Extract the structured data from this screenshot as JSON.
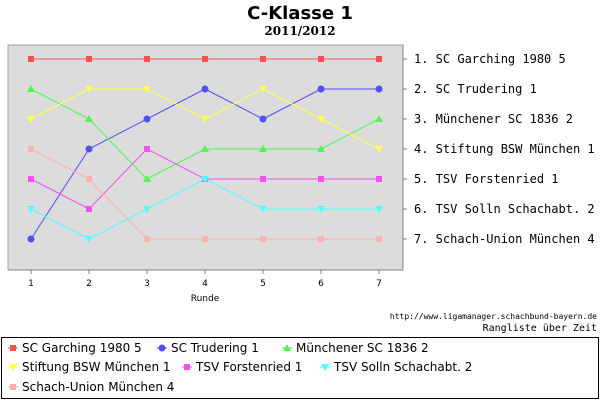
{
  "chart_data": {
    "type": "line",
    "title": "C-Klasse 1",
    "subtitle": "2011/2012",
    "xlabel": "Runde",
    "ylabel": "",
    "x": [
      1,
      2,
      3,
      4,
      5,
      6,
      7
    ],
    "ylim": [
      7,
      1
    ],
    "y_inverted": true,
    "grid": false,
    "legend_position": "bottom",
    "right_labels": [
      "1.  SC Garching 1980 5",
      "2.  SC Trudering 1",
      "3.  Münchener SC 1836 2",
      "4.  Stiftung BSW München 1",
      "5.  TSV Forstenried 1",
      "6.  TSV Solln Schachabt. 2",
      "7.  Schach-Union München 4"
    ],
    "series": [
      {
        "name": "SC Garching 1980 5",
        "color": "#f55050",
        "marker": "square",
        "values": [
          1,
          1,
          1,
          1,
          1,
          1,
          1
        ]
      },
      {
        "name": "SC Trudering 1",
        "color": "#5050f5",
        "marker": "circle",
        "values": [
          7,
          4,
          3,
          2,
          3,
          2,
          2
        ]
      },
      {
        "name": "Münchener SC 1836 2",
        "color": "#50f550",
        "marker": "triangle-up",
        "values": [
          2,
          3,
          5,
          4,
          4,
          4,
          3
        ]
      },
      {
        "name": "Stiftung BSW München 1",
        "color": "#ffff50",
        "marker": "triangle-down",
        "values": [
          3,
          2,
          2,
          3,
          2,
          3,
          4
        ]
      },
      {
        "name": "TSV Forstenried 1",
        "color": "#f550f5",
        "marker": "square",
        "values": [
          5,
          6,
          4,
          5,
          5,
          5,
          5
        ]
      },
      {
        "name": "TSV Solln Schachabt. 2",
        "color": "#50ffff",
        "marker": "triangle-down",
        "values": [
          6,
          7,
          6,
          5,
          6,
          6,
          6
        ]
      },
      {
        "name": "Schach-Union München 4",
        "color": "#ffb0b0",
        "marker": "square",
        "values": [
          4,
          5,
          7,
          7,
          7,
          7,
          7
        ]
      }
    ]
  },
  "footer": {
    "url": "http://www.ligamanager.schachbund-bayern.de",
    "caption": "Rangliste über Zeit"
  }
}
